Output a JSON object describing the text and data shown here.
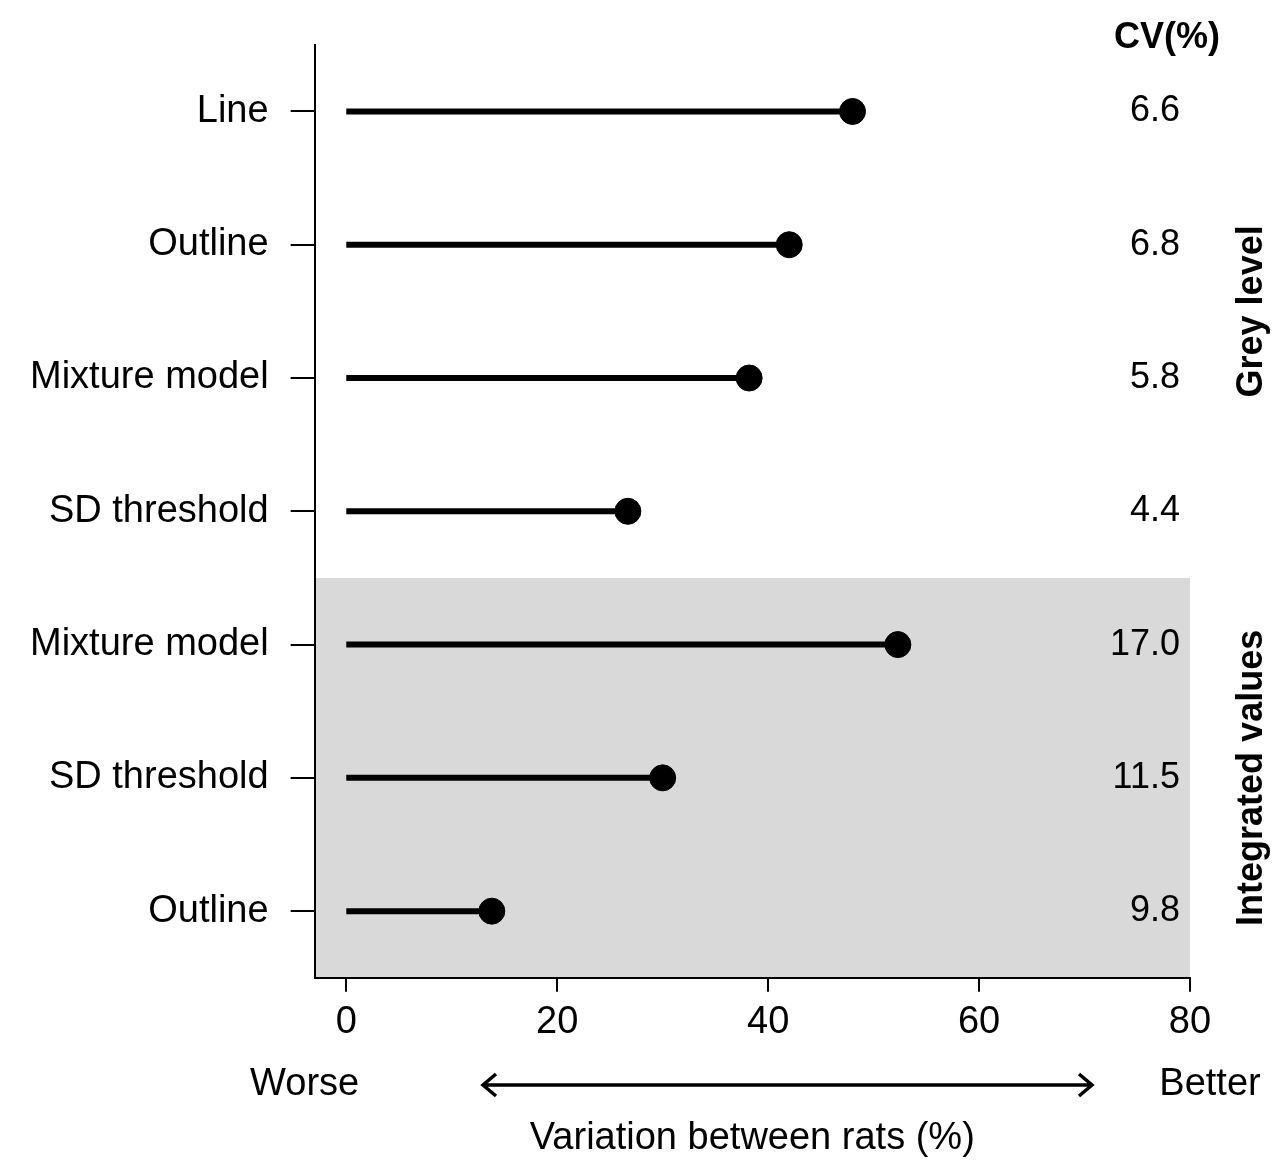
{
  "chart_data": {
    "type": "lollipop",
    "orientation": "horizontal",
    "categories": [
      "Line",
      "Outline",
      "Mixture model",
      "SD threshold",
      "Mixture model",
      "SD threshold",
      "Outline"
    ],
    "values": [
      48,
      42,
      38.2,
      26.7,
      52.3,
      30,
      13.8
    ],
    "color": "#000000",
    "xlim": [
      -3,
      80
    ],
    "xticks": [
      0,
      20,
      40,
      60,
      80
    ],
    "xlabel": "Variation between rats (%)",
    "grid": false,
    "legend": false,
    "marker": "circle",
    "annotations": [
      "Worse",
      "Better",
      "Grey level",
      "Integrated values",
      "CV(%)",
      "6.6",
      "6.8",
      "5.8",
      "4.4",
      "17.0",
      "11.5",
      "9.8"
    ]
  }
}
